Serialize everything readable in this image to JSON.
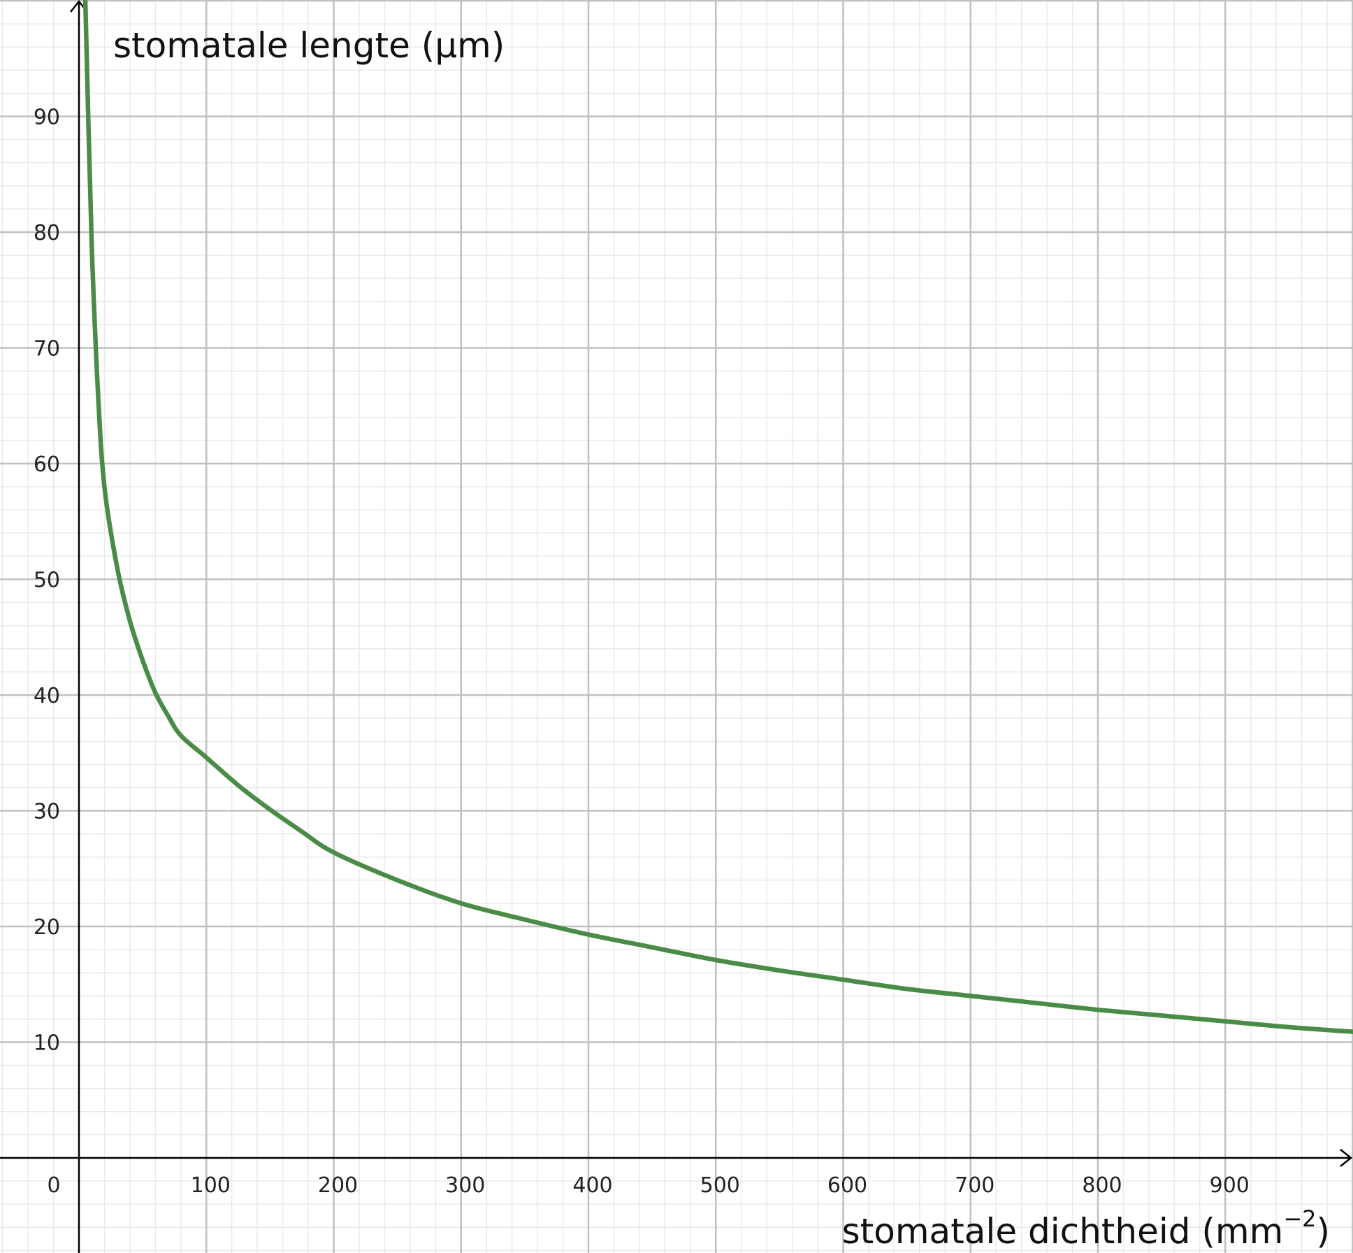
{
  "chart_data": {
    "type": "line",
    "title": "",
    "xlabel": {
      "main": "stomatale dichtheid (mm",
      "sup": "−2",
      "close": ")"
    },
    "ylabel": "stomatale lengte (μm)",
    "xlim": [
      0,
      1000
    ],
    "ylim": [
      -8,
      100
    ],
    "x_ticks": [
      0,
      100,
      200,
      300,
      400,
      500,
      600,
      700,
      800,
      900
    ],
    "x_tick_labels": [
      "0",
      "100",
      "200",
      "300",
      "400",
      "500",
      "600",
      "700",
      "800",
      "900"
    ],
    "y_ticks": [
      10,
      20,
      30,
      40,
      50,
      60,
      70,
      80,
      90
    ],
    "y_tick_labels": [
      "10",
      "20",
      "30",
      "40",
      "50",
      "60",
      "70",
      "80",
      "90"
    ],
    "grid": true,
    "minor_grid_step": {
      "x": 20,
      "y": 2
    },
    "series": [
      {
        "color": "#4a8c47",
        "x": [
          5,
          10,
          15,
          20,
          30,
          40,
          50,
          60,
          70,
          80,
          100,
          125,
          150,
          175,
          200,
          250,
          300,
          350,
          400,
          450,
          500,
          550,
          600,
          650,
          700,
          750,
          800,
          850,
          900,
          950,
          1000
        ],
        "y": [
          100,
          79,
          66,
          58,
          51,
          46.4,
          43,
          40.2,
          38.2,
          36.5,
          34.6,
          32.2,
          30.1,
          28.2,
          26.4,
          24.0,
          22.0,
          20.6,
          19.3,
          18.2,
          17.1,
          16.2,
          15.4,
          14.6,
          14.0,
          13.4,
          12.8,
          12.3,
          11.8,
          11.3,
          10.9
        ]
      }
    ],
    "colors": {
      "major_grid": "#c0c0c0",
      "minor_grid": "#eaeaea",
      "axis": "#000000",
      "curve": "#4a8c47"
    }
  }
}
